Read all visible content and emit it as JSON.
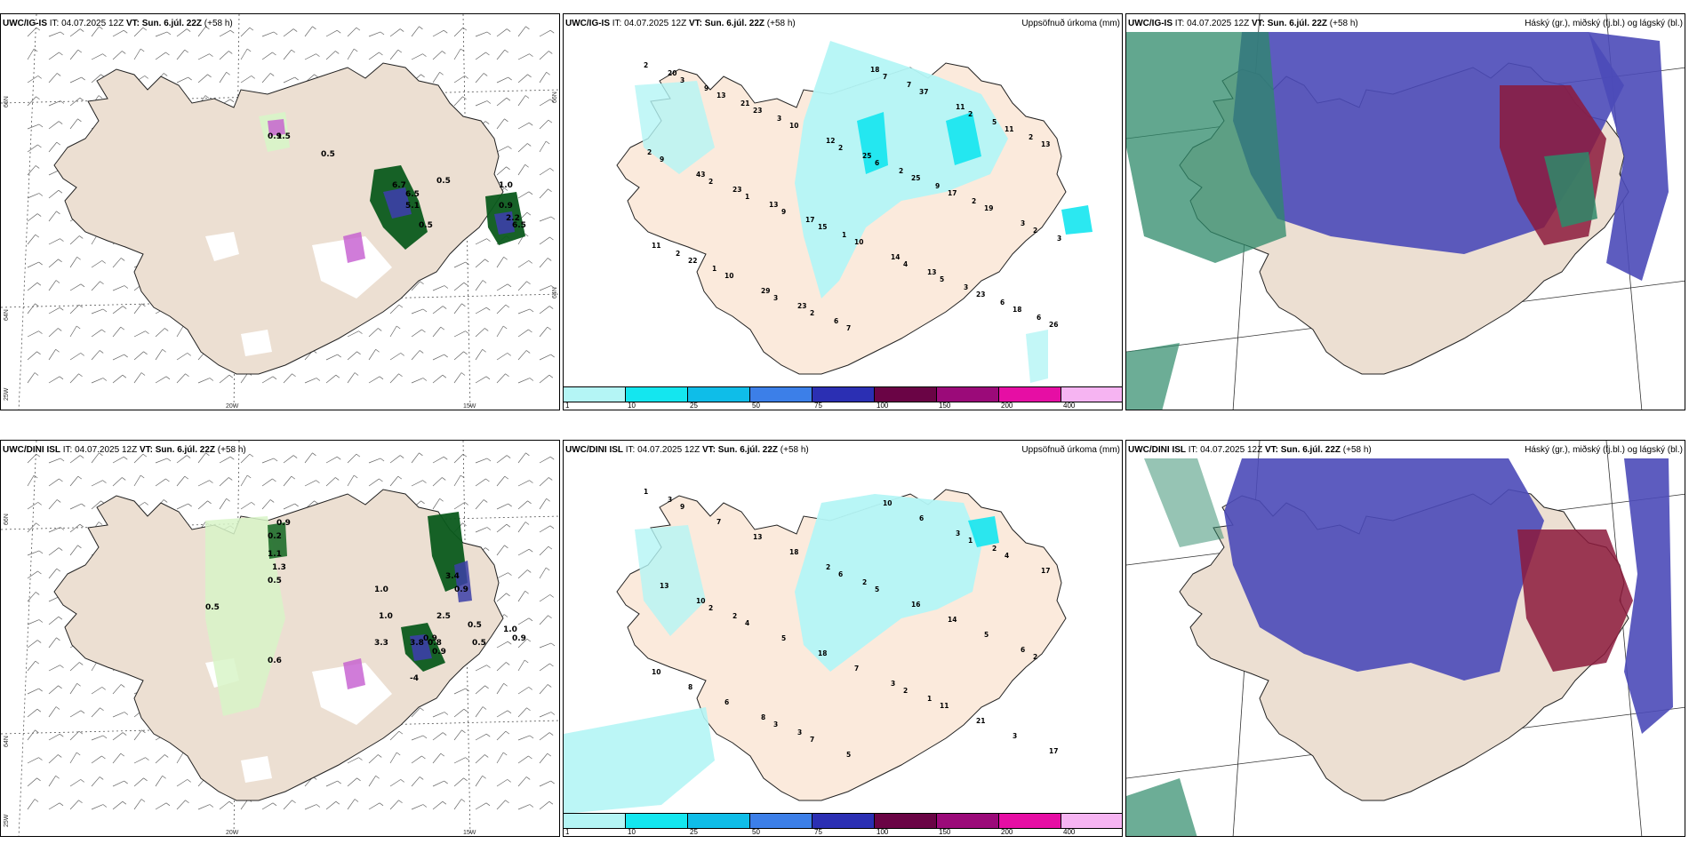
{
  "panels": [
    {
      "model": "UWC/IG-IS",
      "it": "IT: 04.07.2025 12Z",
      "vt_label": "VT:",
      "vt": "Sun. 6.júl. 22Z",
      "lead": "(+58 h)",
      "kind": "wind"
    },
    {
      "model": "UWC/IG-IS",
      "it": "IT: 04.07.2025 12Z",
      "vt_label": "VT:",
      "vt": "Sun. 6.júl. 22Z",
      "lead": "(+58 h)",
      "kind": "precip",
      "right_title": "Uppsöfnuð úrkoma (mm)"
    },
    {
      "model": "UWC/IG-IS",
      "it": "IT: 04.07.2025 12Z",
      "vt_label": "VT:",
      "vt": "Sun. 6.júl. 22Z",
      "lead": "(+58 h)",
      "kind": "cloud",
      "right_title": "Háský (gr.), miðský (fj.bl.) og lágský (bl.)"
    },
    {
      "model": "UWC/DINI ISL",
      "it": "IT: 04.07.2025 12Z",
      "vt_label": "VT:",
      "vt": "Sun. 6.júl. 22Z",
      "lead": "(+58 h)",
      "kind": "wind"
    },
    {
      "model": "UWC/DINI ISL",
      "it": "IT: 04.07.2025 12Z",
      "vt_label": "VT:",
      "vt": "Sun. 6.júl. 22Z",
      "lead": "(+58 h)",
      "kind": "precip",
      "right_title": "Uppsöfnuð úrkoma (mm)"
    },
    {
      "model": "UWC/DINI ISL",
      "it": "IT: 04.07.2025 12Z",
      "vt_label": "VT:",
      "vt": "Sun. 6.júl. 22Z",
      "lead": "(+58 h)",
      "kind": "cloud",
      "right_title": "Háský (gr.), miðský (fj.bl.) og lágský (bl.)"
    }
  ],
  "axes": {
    "lat_66": "66N",
    "lat_64": "64N",
    "lon_25": "25W",
    "lon_20": "20W",
    "lon_15": "15W"
  },
  "precip_legend": {
    "labels": [
      "1",
      "10",
      "25",
      "50",
      "75",
      "100",
      "150",
      "200",
      "400"
    ],
    "colors": [
      "#b4f5f5",
      "#14e6ef",
      "#0fbde8",
      "#3c7fe8",
      "#2b2fb3",
      "#6a0445",
      "#9b0a79",
      "#e60ea4",
      "#f6b4f2"
    ]
  },
  "precip_values_top": [
    "2",
    "2",
    "3",
    "2",
    "4",
    "2",
    "2",
    "3",
    "1",
    "2",
    "6",
    "5",
    "11",
    "11",
    "13",
    "9",
    "7",
    "25",
    "23",
    "13",
    "22",
    "23",
    "15",
    "7",
    "17",
    "18",
    "9",
    "10",
    "10",
    "10",
    "37",
    "19",
    "26",
    "43",
    "29",
    "12",
    "14",
    "11",
    "3",
    "20",
    "23",
    "23",
    "25",
    "13",
    "5",
    "3",
    "9",
    "13",
    "6",
    "2",
    "3",
    "2",
    "2",
    "21",
    "17",
    "18",
    "9",
    "6",
    "2",
    "1",
    "3",
    "1",
    "7",
    "2",
    "6"
  ],
  "precip_values_bottom": [
    "1",
    "2",
    "3",
    "6",
    "2",
    "1",
    "2",
    "9",
    "4",
    "7",
    "5",
    "11",
    "4",
    "10",
    "7",
    "5",
    "5",
    "16",
    "21",
    "17",
    "8",
    "13",
    "18",
    "10",
    "14",
    "3",
    "13",
    "6",
    "18",
    "7",
    "6",
    "5",
    "17",
    "10",
    "8",
    "2",
    "3",
    "3",
    "6",
    "3",
    "2",
    "3",
    "2",
    "1",
    "2"
  ],
  "wind_values_top": [
    "0.9",
    "1.5",
    "0.5",
    "6.7",
    "6.5",
    "5.1",
    "0.5",
    "0.9",
    "1.0",
    "2.2",
    "0.5",
    "6.5"
  ],
  "wind_values_bottom": [
    "0.9",
    "0.2",
    "1.1",
    "1.3",
    "0.5",
    "0.5",
    "1.0",
    "1.0",
    "3.3",
    "0.5",
    "3.8",
    "0.8",
    "0.9",
    "0.9",
    "0.5",
    "3.4",
    "0.9",
    "2.5",
    "1.0",
    "0.9",
    "0.6",
    "-4"
  ]
}
